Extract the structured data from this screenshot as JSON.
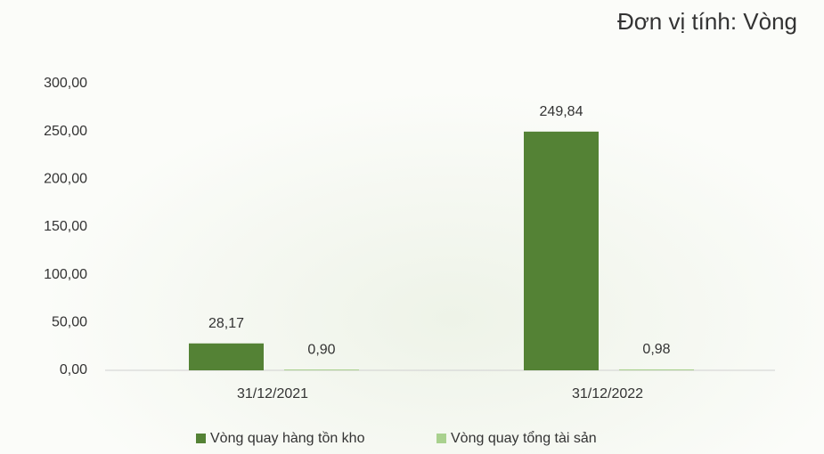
{
  "chart_data": {
    "type": "bar",
    "title": "Đơn vị tính: Vòng",
    "categories": [
      "31/12/2021",
      "31/12/2022"
    ],
    "series": [
      {
        "name": "Vòng quay hàng tồn kho",
        "color": "#548235",
        "values": [
          28.17,
          249.84
        ],
        "value_labels": [
          "28,17",
          "249,84"
        ]
      },
      {
        "name": "Vòng quay tổng tài sản",
        "color": "#a9d18e",
        "values": [
          0.9,
          0.98
        ],
        "value_labels": [
          "0,90",
          "0,98"
        ]
      }
    ],
    "ylim": [
      0,
      300
    ],
    "yticks": [
      {
        "value": 0,
        "label": "0,00"
      },
      {
        "value": 50,
        "label": "50,00"
      },
      {
        "value": 100,
        "label": "100,00"
      },
      {
        "value": 150,
        "label": "150,00"
      },
      {
        "value": 200,
        "label": "200,00"
      },
      {
        "value": 250,
        "label": "250,00"
      },
      {
        "value": 300,
        "label": "300,00"
      }
    ],
    "grid": false,
    "legend": "bottom"
  }
}
